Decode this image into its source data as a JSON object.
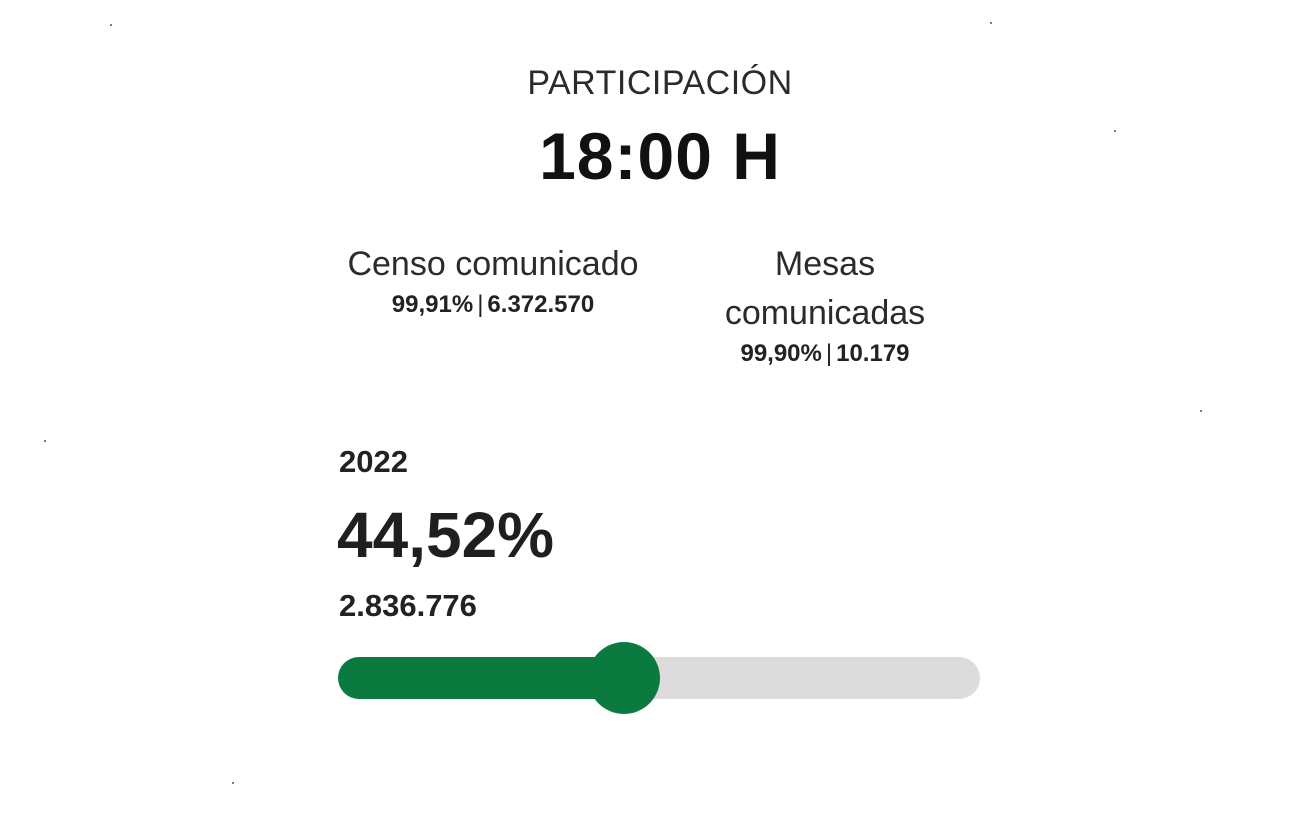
{
  "participation": {
    "title": "PARTICIPACIÓN",
    "time": "18:00 H"
  },
  "census": {
    "label": "Censo comunicado",
    "percent": "99,91%",
    "separator": "|",
    "count": "6.372.570"
  },
  "tables": {
    "label": "Mesas comunicadas",
    "percent": "99,90%",
    "separator": "|",
    "count": "10.179"
  },
  "previous": {
    "year": "2022",
    "percent": "44,52%",
    "votes": "2.836.776",
    "bar_value": 0.4452
  },
  "colors": {
    "accent": "#0b7a3e",
    "track": "#dcdcdc"
  }
}
